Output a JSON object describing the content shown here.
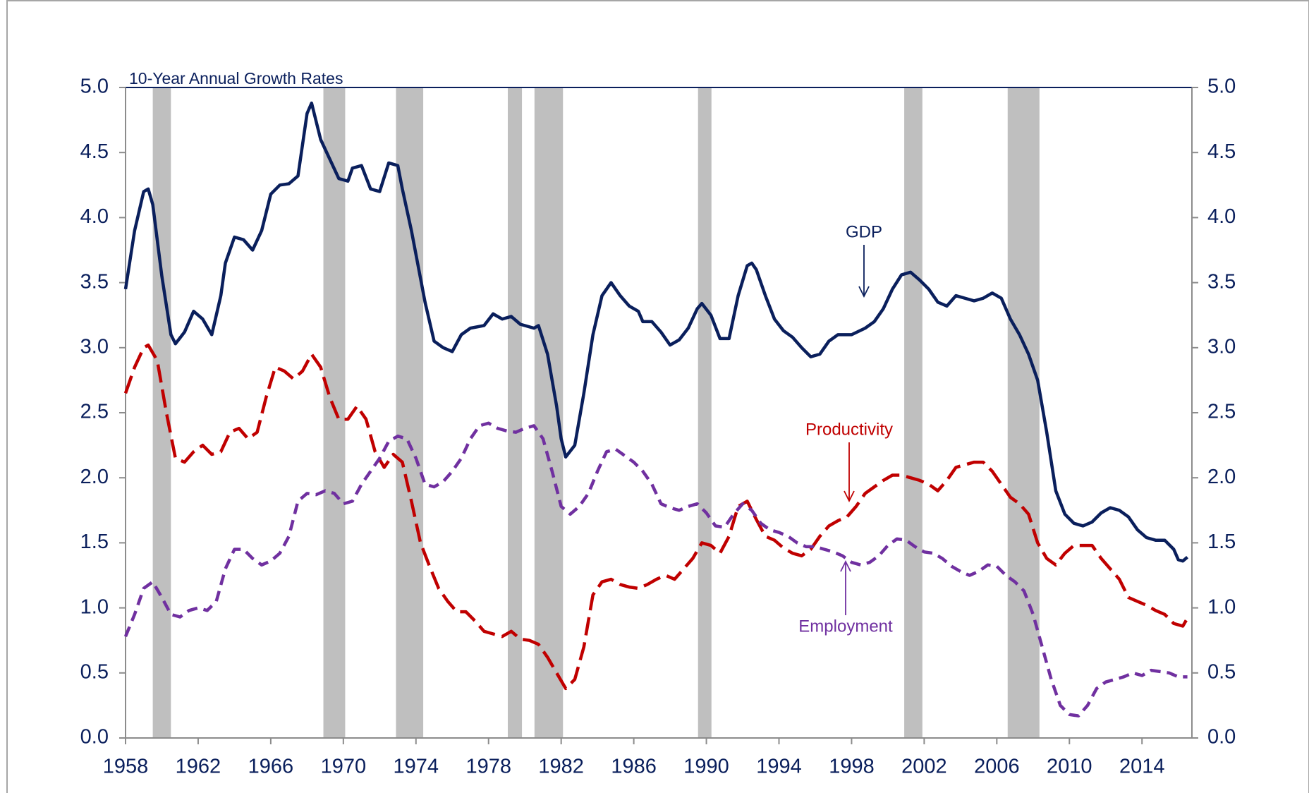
{
  "chart_data": {
    "type": "line",
    "title": "10-Year Annual Growth Rates",
    "xlim": [
      1958,
      2016.75
    ],
    "xticks": [
      1958,
      1962,
      1966,
      1970,
      1974,
      1978,
      1982,
      1986,
      1990,
      1994,
      1998,
      2002,
      2006,
      2010,
      2014
    ],
    "ylim": [
      0,
      5
    ],
    "yticks": [
      {
        "value": 0,
        "label": "0.0"
      },
      {
        "value": 0.5,
        "label": "0.5"
      },
      {
        "value": 1,
        "label": "1.0"
      },
      {
        "value": 1.5,
        "label": "1.5"
      },
      {
        "value": 2,
        "label": "2.0"
      },
      {
        "value": 2.5,
        "label": "2.5"
      },
      {
        "value": 3,
        "label": "3.0"
      },
      {
        "value": 3.5,
        "label": "3.5"
      },
      {
        "value": 4,
        "label": "4.0"
      },
      {
        "value": 4.5,
        "label": "4.5"
      },
      {
        "value": 5,
        "label": "5.0"
      }
    ],
    "y2lim": [
      0,
      5
    ],
    "y2ticks": [
      {
        "value": 0,
        "label": "0.0"
      },
      {
        "value": 0.5,
        "label": "0.5"
      },
      {
        "value": 1,
        "label": "1.0"
      },
      {
        "value": 1.5,
        "label": "1.5"
      },
      {
        "value": 2,
        "label": "2.0"
      },
      {
        "value": 2.5,
        "label": "2.5"
      },
      {
        "value": 3,
        "label": "3.0"
      },
      {
        "value": 3.5,
        "label": "3.5"
      },
      {
        "value": 4,
        "label": "4.0"
      },
      {
        "value": 4.5,
        "label": "4.5"
      },
      {
        "value": 5,
        "label": "5.0"
      }
    ],
    "recession_color": "#bfbfbf",
    "recessions": [
      [
        1959.5,
        1960.5
      ],
      [
        1968.9,
        1970.1
      ],
      [
        1972.9,
        1974.4
      ],
      [
        1979.06,
        1979.84
      ],
      [
        1980.53,
        1982.1
      ],
      [
        1989.54,
        1990.28
      ],
      [
        2000.9,
        2001.9
      ],
      [
        2006.6,
        2008.35
      ]
    ],
    "series": [
      {
        "name": "GDP",
        "color": "#0a1f5c",
        "dash": "solid",
        "x": [
          1958,
          1958.5,
          1959,
          1959.25,
          1959.5,
          1960,
          1960.5,
          1960.75,
          1961.25,
          1961.75,
          1962.25,
          1962.75,
          1963.25,
          1963.5,
          1964,
          1964.5,
          1965,
          1965.5,
          1966,
          1966.5,
          1967,
          1967.5,
          1968,
          1968.25,
          1968.75,
          1969.25,
          1969.75,
          1970.25,
          1970.5,
          1971,
          1971.5,
          1972,
          1972.5,
          1973,
          1973.25,
          1973.75,
          1974.5,
          1975,
          1975.5,
          1976,
          1976.5,
          1977,
          1977.75,
          1978.25,
          1978.75,
          1979.25,
          1979.75,
          1980.5,
          1980.75,
          1981.25,
          1981.75,
          1982,
          1982.25,
          1982.75,
          1983.25,
          1983.75,
          1984.25,
          1984.75,
          1985.25,
          1985.75,
          1986.25,
          1986.5,
          1987,
          1987.5,
          1988,
          1988.5,
          1989,
          1989.5,
          1989.75,
          1990.25,
          1990.75,
          1991.25,
          1991.75,
          1992.25,
          1992.5,
          1992.75,
          1993.25,
          1993.75,
          1994.25,
          1994.75,
          1995.25,
          1995.75,
          1996.25,
          1996.75,
          1997.25,
          1998,
          1998.75,
          1999.25,
          1999.75,
          2000.25,
          2000.75,
          2001.25,
          2001.75,
          2002.25,
          2002.75,
          2003.25,
          2003.75,
          2004.25,
          2004.75,
          2005.25,
          2005.75,
          2006.25,
          2006.75,
          2007.25,
          2007.75,
          2008.25,
          2008.75,
          2009.25,
          2009.75,
          2010.25,
          2010.75,
          2011.25,
          2011.75,
          2012.25,
          2012.75,
          2013.25,
          2013.75,
          2014.25,
          2014.75,
          2015.25,
          2015.75,
          2016,
          2016.25,
          2016.5
        ],
        "values": [
          3.45,
          3.9,
          4.2,
          4.22,
          4.1,
          3.55,
          3.1,
          3.03,
          3.12,
          3.28,
          3.22,
          3.1,
          3.4,
          3.65,
          3.85,
          3.83,
          3.75,
          3.9,
          4.18,
          4.25,
          4.26,
          4.32,
          4.8,
          4.88,
          4.6,
          4.45,
          4.3,
          4.28,
          4.38,
          4.4,
          4.22,
          4.2,
          4.42,
          4.4,
          4.22,
          3.9,
          3.35,
          3.05,
          3.0,
          2.97,
          3.1,
          3.15,
          3.17,
          3.26,
          3.22,
          3.24,
          3.18,
          3.15,
          3.17,
          2.95,
          2.55,
          2.3,
          2.16,
          2.25,
          2.65,
          3.1,
          3.4,
          3.5,
          3.4,
          3.32,
          3.28,
          3.2,
          3.2,
          3.12,
          3.02,
          3.06,
          3.15,
          3.3,
          3.34,
          3.25,
          3.07,
          3.07,
          3.4,
          3.63,
          3.65,
          3.6,
          3.4,
          3.22,
          3.13,
          3.08,
          3.0,
          2.93,
          2.95,
          3.05,
          3.1,
          3.1,
          3.15,
          3.2,
          3.3,
          3.45,
          3.56,
          3.58,
          3.52,
          3.45,
          3.35,
          3.32,
          3.4,
          3.38,
          3.36,
          3.38,
          3.42,
          3.38,
          3.22,
          3.1,
          2.95,
          2.75,
          2.35,
          1.9,
          1.72,
          1.65,
          1.63,
          1.66,
          1.73,
          1.77,
          1.75,
          1.7,
          1.6,
          1.54,
          1.52,
          1.52,
          1.45,
          1.37,
          1.36,
          1.39
        ]
      },
      {
        "name": "Productivity",
        "color": "#c00000",
        "dash": "long",
        "x": [
          1958,
          1958.5,
          1959,
          1959.25,
          1959.75,
          1960.25,
          1960.75,
          1961.25,
          1961.75,
          1962.25,
          1962.75,
          1963.25,
          1963.75,
          1964.25,
          1964.75,
          1965.25,
          1965.75,
          1966.25,
          1966.75,
          1967.25,
          1967.75,
          1968.25,
          1968.75,
          1969.25,
          1969.75,
          1970.25,
          1970.75,
          1971.25,
          1971.75,
          1972.25,
          1972.75,
          1973.25,
          1973.75,
          1974.25,
          1974.75,
          1975.25,
          1975.75,
          1976.25,
          1976.75,
          1977.25,
          1977.75,
          1978.25,
          1978.75,
          1979.25,
          1979.75,
          1980.25,
          1980.75,
          1981.25,
          1981.75,
          1982.25,
          1982.75,
          1983.25,
          1983.75,
          1984.25,
          1984.75,
          1985.25,
          1985.75,
          1986.25,
          1986.75,
          1987.25,
          1987.75,
          1988.25,
          1988.75,
          1989.25,
          1989.75,
          1990.25,
          1990.75,
          1991.25,
          1991.75,
          1992.25,
          1992.75,
          1993.25,
          1993.75,
          1994.25,
          1994.75,
          1995.25,
          1995.75,
          1996.25,
          1996.75,
          1997.25,
          1997.75,
          1998.25,
          1998.75,
          1999.25,
          1999.75,
          2000.25,
          2000.75,
          2001.25,
          2001.75,
          2002.25,
          2002.75,
          2003.25,
          2003.75,
          2004.25,
          2004.75,
          2005.25,
          2005.75,
          2006.25,
          2006.75,
          2007.25,
          2007.75,
          2008.25,
          2008.75,
          2009.25,
          2009.75,
          2010.25,
          2010.75,
          2011.25,
          2011.75,
          2012.25,
          2012.75,
          2013.25,
          2013.75,
          2014.25,
          2014.75,
          2015.25,
          2015.75,
          2016.25,
          2016.5
        ],
        "values": [
          2.65,
          2.85,
          3.0,
          3.02,
          2.9,
          2.5,
          2.15,
          2.12,
          2.2,
          2.25,
          2.18,
          2.2,
          2.35,
          2.38,
          2.3,
          2.35,
          2.62,
          2.85,
          2.82,
          2.76,
          2.82,
          2.95,
          2.85,
          2.62,
          2.45,
          2.45,
          2.55,
          2.45,
          2.2,
          2.08,
          2.18,
          2.12,
          1.82,
          1.5,
          1.32,
          1.15,
          1.05,
          0.97,
          0.97,
          0.9,
          0.82,
          0.8,
          0.78,
          0.82,
          0.76,
          0.75,
          0.72,
          0.62,
          0.5,
          0.38,
          0.45,
          0.7,
          1.1,
          1.2,
          1.22,
          1.18,
          1.16,
          1.15,
          1.18,
          1.22,
          1.25,
          1.22,
          1.3,
          1.38,
          1.5,
          1.48,
          1.42,
          1.55,
          1.78,
          1.82,
          1.68,
          1.55,
          1.52,
          1.46,
          1.42,
          1.4,
          1.45,
          1.55,
          1.63,
          1.67,
          1.7,
          1.78,
          1.88,
          1.93,
          1.98,
          2.02,
          2.02,
          2.0,
          1.98,
          1.95,
          1.9,
          1.98,
          2.08,
          2.1,
          2.12,
          2.12,
          2.05,
          1.95,
          1.85,
          1.8,
          1.72,
          1.5,
          1.38,
          1.33,
          1.42,
          1.48,
          1.48,
          1.48,
          1.38,
          1.3,
          1.22,
          1.08,
          1.05,
          1.02,
          0.98,
          0.95,
          0.88,
          0.86,
          0.92
        ]
      },
      {
        "name": "Employment",
        "color": "#7030a0",
        "dash": "short",
        "x": [
          1958,
          1958.5,
          1959,
          1959.5,
          1960,
          1960.5,
          1961,
          1961.5,
          1962,
          1962.5,
          1963,
          1963.5,
          1964,
          1964.5,
          1965,
          1965.5,
          1966,
          1966.5,
          1967,
          1967.5,
          1968,
          1968.5,
          1969,
          1969.5,
          1970,
          1970.5,
          1971,
          1971.5,
          1972,
          1972.5,
          1973,
          1973.5,
          1974,
          1974.5,
          1975,
          1975.5,
          1976,
          1976.5,
          1977,
          1977.5,
          1978,
          1978.5,
          1979,
          1979.5,
          1980,
          1980.5,
          1981,
          1981.5,
          1982,
          1982.5,
          1983,
          1983.5,
          1984,
          1984.5,
          1985,
          1985.5,
          1986,
          1986.5,
          1987,
          1987.5,
          1988,
          1988.5,
          1989,
          1989.5,
          1990,
          1990.5,
          1991,
          1991.5,
          1992,
          1992.5,
          1993,
          1993.5,
          1994,
          1994.5,
          1995,
          1995.5,
          1996,
          1996.5,
          1997,
          1997.5,
          1998,
          1998.5,
          1999,
          1999.5,
          2000,
          2000.5,
          2001,
          2001.5,
          2002,
          2002.5,
          2003,
          2003.5,
          2004,
          2004.5,
          2005,
          2005.5,
          2006,
          2006.5,
          2007,
          2007.5,
          2008,
          2008.5,
          2009,
          2009.5,
          2010,
          2010.5,
          2011,
          2011.5,
          2012,
          2012.5,
          2013,
          2013.5,
          2014,
          2014.5,
          2015,
          2015.5,
          2016,
          2016.5
        ],
        "values": [
          0.78,
          0.95,
          1.15,
          1.2,
          1.08,
          0.95,
          0.93,
          0.98,
          1.0,
          0.98,
          1.05,
          1.3,
          1.45,
          1.45,
          1.38,
          1.33,
          1.36,
          1.42,
          1.55,
          1.82,
          1.88,
          1.87,
          1.9,
          1.88,
          1.8,
          1.82,
          1.95,
          2.05,
          2.15,
          2.28,
          2.32,
          2.3,
          2.15,
          1.95,
          1.93,
          1.97,
          2.05,
          2.15,
          2.3,
          2.4,
          2.42,
          2.38,
          2.36,
          2.35,
          2.38,
          2.4,
          2.3,
          2.05,
          1.78,
          1.72,
          1.78,
          1.88,
          2.05,
          2.2,
          2.22,
          2.17,
          2.12,
          2.05,
          1.95,
          1.8,
          1.77,
          1.75,
          1.78,
          1.8,
          1.73,
          1.63,
          1.62,
          1.72,
          1.8,
          1.75,
          1.65,
          1.6,
          1.58,
          1.55,
          1.5,
          1.47,
          1.47,
          1.45,
          1.43,
          1.4,
          1.35,
          1.33,
          1.35,
          1.4,
          1.48,
          1.53,
          1.52,
          1.47,
          1.43,
          1.42,
          1.38,
          1.32,
          1.28,
          1.25,
          1.28,
          1.33,
          1.32,
          1.25,
          1.2,
          1.13,
          0.95,
          0.7,
          0.45,
          0.25,
          0.18,
          0.17,
          0.25,
          0.38,
          0.43,
          0.45,
          0.47,
          0.5,
          0.48,
          0.52,
          0.51,
          0.5,
          0.47,
          0.47
        ]
      }
    ]
  }
}
